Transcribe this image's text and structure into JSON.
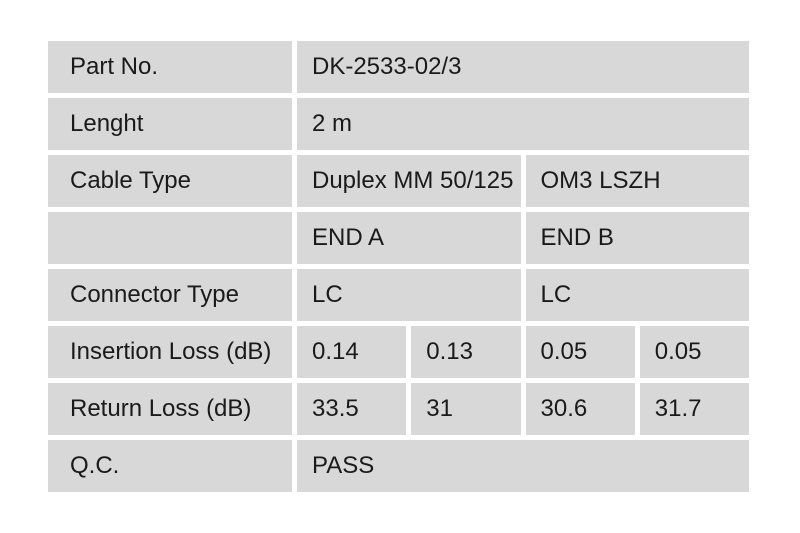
{
  "page": {
    "background_color": "#ffffff",
    "cell_color": "#d8d8d8",
    "text_color": "#1a1a1a"
  },
  "table": {
    "rows": [
      {
        "label": "Part No.",
        "cells": [
          {
            "text": "DK-2533-02/3"
          }
        ]
      },
      {
        "label": "Lenght",
        "cells": [
          {
            "text": "2 m"
          }
        ]
      },
      {
        "label": "Cable Type",
        "cells": [
          {
            "text": "Duplex MM 50/125"
          },
          {
            "text": "OM3 LSZH"
          }
        ]
      },
      {
        "label": "",
        "cells": [
          {
            "text": "END A"
          },
          {
            "text": "END B"
          }
        ]
      },
      {
        "label": "Connector Type",
        "cells": [
          {
            "text": "LC"
          },
          {
            "text": "LC"
          }
        ]
      },
      {
        "label": "Insertion Loss (dB)",
        "cells": [
          {
            "text": "0.14"
          },
          {
            "text": "0.13"
          },
          {
            "text": "0.05"
          },
          {
            "text": "0.05"
          }
        ]
      },
      {
        "label": "Return Loss (dB)",
        "cells": [
          {
            "text": "33.5"
          },
          {
            "text": "31"
          },
          {
            "text": "30.6"
          },
          {
            "text": "31.7"
          }
        ]
      },
      {
        "label": "Q.C.",
        "cells": [
          {
            "text": "PASS"
          }
        ]
      }
    ]
  }
}
